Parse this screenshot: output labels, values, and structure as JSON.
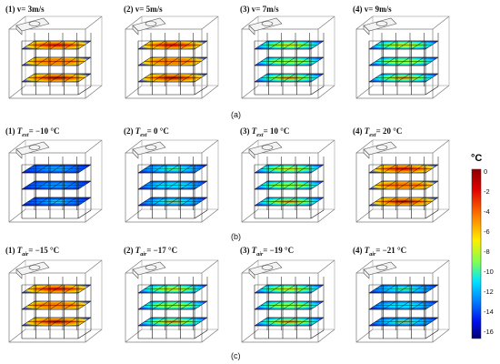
{
  "row_a": {
    "caption": "(a)",
    "panels": [
      {
        "num": "(1)",
        "text": "v= 3m/s",
        "level": "warm"
      },
      {
        "num": "(2)",
        "text": "v= 5m/s",
        "level": "warm"
      },
      {
        "num": "(3)",
        "text": "v= 7m/s",
        "level": "mid"
      },
      {
        "num": "(4)",
        "text": "v= 9m/s",
        "level": "mid"
      }
    ]
  },
  "row_b": {
    "caption": "(b)",
    "panels": [
      {
        "num": "(1)",
        "var": "T",
        "sub": "ext",
        "text": "= −10 °C",
        "level": "cold"
      },
      {
        "num": "(2)",
        "var": "T",
        "sub": "ext",
        "text": "= 0 °C",
        "level": "coldmid"
      },
      {
        "num": "(3)",
        "var": "T",
        "sub": "ext",
        "text": "= 10 °C",
        "level": "mid"
      },
      {
        "num": "(4)",
        "var": "T",
        "sub": "ext",
        "text": "= 20 °C",
        "level": "warm"
      }
    ]
  },
  "row_c": {
    "caption": "(c)",
    "panels": [
      {
        "num": "(1)",
        "var": "T",
        "sub": "air",
        "text": "= −15 °C",
        "level": "warm"
      },
      {
        "num": "(2)",
        "var": "T",
        "sub": "air",
        "text": "= −17 °C",
        "level": "mid"
      },
      {
        "num": "(3)",
        "var": "T",
        "sub": "air",
        "text": "= −19 °C",
        "level": "mid"
      },
      {
        "num": "(4)",
        "var": "T",
        "sub": "air",
        "text": "= −21 °C",
        "level": "coldmid"
      }
    ]
  },
  "colorbar": {
    "unit": "°C",
    "ticks": [
      "0",
      "-2",
      "-4",
      "-6",
      "-8",
      "-10",
      "-12",
      "-14",
      "-16"
    ],
    "colors": [
      "#8b0000",
      "#ff2200",
      "#ff9900",
      "#ffee00",
      "#99ff33",
      "#33ffcc",
      "#0099ff",
      "#0022ff",
      "#000080"
    ]
  }
}
